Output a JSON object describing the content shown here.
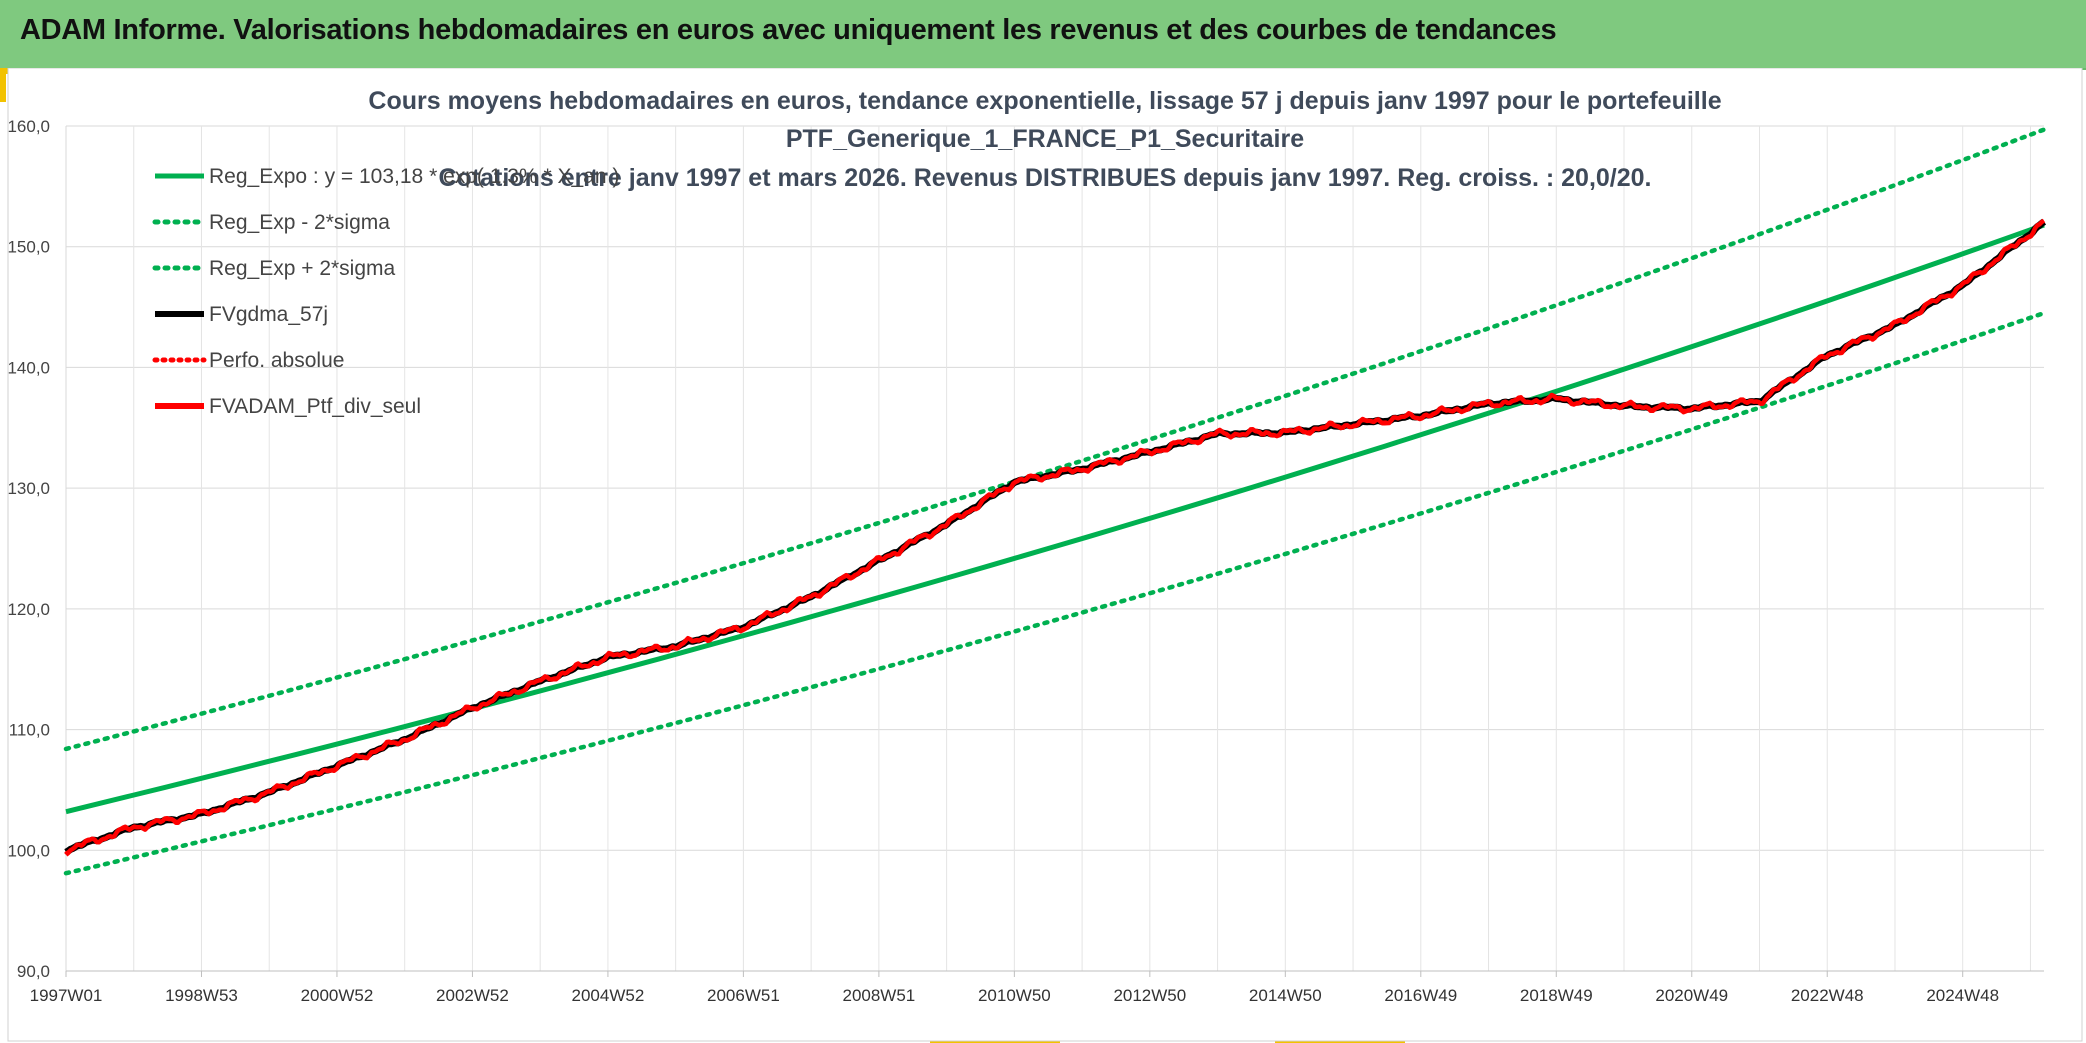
{
  "header": {
    "title": "ADAM Informe. Valorisations hebdomadaires en euros avec uniquement les revenus et des courbes de tendances"
  },
  "colors": {
    "header_bg": "#7fc97f",
    "accent": "#f2c200",
    "trend_green": "#00b050",
    "price_black": "#000000",
    "perf_red": "#ff0000"
  },
  "chart_data": {
    "type": "line",
    "title_lines": [
      "Cours moyens hebdomadaires en euros, tendance exponentielle, lissage 57 j depuis janv 1997 pour le portefeuille",
      "PTF_Generique_1_FRANCE_P1_Securitaire",
      "Cotations entre janv 1997 et mars 2026. Revenus DISTRIBUES depuis janv 1997. Reg. croiss. : 20,0/20."
    ],
    "xlabel": "",
    "ylabel": "",
    "xlim": [
      1997.0,
      2026.2
    ],
    "ylim": [
      90,
      160
    ],
    "y_ticks": [
      "90,0",
      "100,0",
      "110,0",
      "120,0",
      "130,0",
      "140,0",
      "150,0",
      "160,0"
    ],
    "x_ticks": [
      {
        "label": "1997W01",
        "x": 1997.0
      },
      {
        "label": "1998W53",
        "x": 1999.0
      },
      {
        "label": "2000W52",
        "x": 2001.0
      },
      {
        "label": "2002W52",
        "x": 2003.0
      },
      {
        "label": "2004W52",
        "x": 2005.0
      },
      {
        "label": "2006W51",
        "x": 2007.0
      },
      {
        "label": "2008W51",
        "x": 2009.0
      },
      {
        "label": "2010W50",
        "x": 2011.0
      },
      {
        "label": "2012W50",
        "x": 2013.0
      },
      {
        "label": "2014W50",
        "x": 2015.0
      },
      {
        "label": "2016W49",
        "x": 2017.0
      },
      {
        "label": "2018W49",
        "x": 2019.0
      },
      {
        "label": "2020W49",
        "x": 2021.0
      },
      {
        "label": "2022W48",
        "x": 2023.0
      },
      {
        "label": "2024W48",
        "x": 2025.0
      }
    ],
    "grid": true,
    "legend_position": "top-left",
    "series": [
      {
        "name": "Reg_Expo : y = 103,18 * exp( 1,3% *  X_an )",
        "color": "#00b050",
        "style": "solid",
        "x": [
          1997.0,
          2026.2
        ],
        "values": [
          103.2,
          151.8
        ]
      },
      {
        "name": "Reg_Exp - 2*sigma",
        "color": "#00b050",
        "style": "dotted",
        "x": [
          1997.0,
          2026.2
        ],
        "values": [
          98.1,
          144.5
        ]
      },
      {
        "name": "Reg_Exp + 2*sigma",
        "color": "#00b050",
        "style": "dotted",
        "x": [
          1997.0,
          2026.2
        ],
        "values": [
          108.4,
          159.7
        ]
      },
      {
        "name": "FVgdma_57j",
        "color": "#000000",
        "style": "solid",
        "x": [
          1997.0,
          1998.0,
          1999.0,
          2000.0,
          2001.0,
          2002.0,
          2003.0,
          2004.0,
          2005.0,
          2006.0,
          2007.0,
          2008.0,
          2009.0,
          2010.0,
          2011.0,
          2012.0,
          2013.0,
          2014.0,
          2015.0,
          2016.0,
          2017.0,
          2018.0,
          2019.0,
          2020.0,
          2021.0,
          2022.0,
          2023.0,
          2024.0,
          2025.0,
          2026.2
        ],
        "values": [
          100.0,
          101.9,
          103.0,
          104.8,
          107.0,
          109.2,
          111.8,
          114.0,
          116.0,
          116.9,
          118.5,
          121.0,
          124.0,
          127.0,
          130.5,
          131.6,
          133.0,
          134.5,
          134.6,
          135.3,
          136.0,
          137.0,
          137.4,
          136.8,
          136.6,
          137.2,
          141.0,
          143.5,
          146.8,
          152.0
        ]
      },
      {
        "name": "Perfo. absolue",
        "color": "#ff0000",
        "style": "dotted",
        "x": [
          1997.0,
          1998.0,
          1999.0,
          2000.0,
          2001.0,
          2002.0,
          2003.0,
          2004.0,
          2005.0,
          2006.0,
          2007.0,
          2008.0,
          2009.0,
          2010.0,
          2011.0,
          2012.0,
          2013.0,
          2014.0,
          2015.0,
          2016.0,
          2017.0,
          2018.0,
          2019.0,
          2020.0,
          2021.0,
          2022.0,
          2023.0,
          2024.0,
          2025.0,
          2026.2
        ],
        "values": [
          100.0,
          101.9,
          103.0,
          104.8,
          107.0,
          109.2,
          111.8,
          114.0,
          116.0,
          116.9,
          118.5,
          121.0,
          124.0,
          127.0,
          130.5,
          131.6,
          133.0,
          134.5,
          134.6,
          135.3,
          136.0,
          137.0,
          137.4,
          136.8,
          136.6,
          137.2,
          141.0,
          143.5,
          146.8,
          152.0
        ]
      },
      {
        "name": "FVADAM_Ptf_div_seul",
        "color": "#ff0000",
        "style": "solid",
        "x": [
          1997.0,
          1998.0,
          1999.0,
          2000.0,
          2001.0,
          2002.0,
          2003.0,
          2004.0,
          2005.0,
          2006.0,
          2007.0,
          2008.0,
          2009.0,
          2010.0,
          2011.0,
          2012.0,
          2013.0,
          2014.0,
          2015.0,
          2016.0,
          2017.0,
          2018.0,
          2019.0,
          2020.0,
          2021.0,
          2022.0,
          2023.0,
          2024.0,
          2025.0,
          2026.2
        ],
        "values": [
          100.0,
          101.9,
          103.0,
          104.8,
          107.0,
          109.2,
          111.8,
          114.0,
          116.0,
          116.9,
          118.5,
          121.0,
          124.0,
          127.0,
          130.5,
          131.6,
          133.0,
          134.5,
          134.6,
          135.3,
          136.0,
          137.0,
          137.4,
          136.8,
          136.6,
          137.2,
          141.0,
          143.5,
          146.8,
          152.0
        ]
      }
    ]
  }
}
